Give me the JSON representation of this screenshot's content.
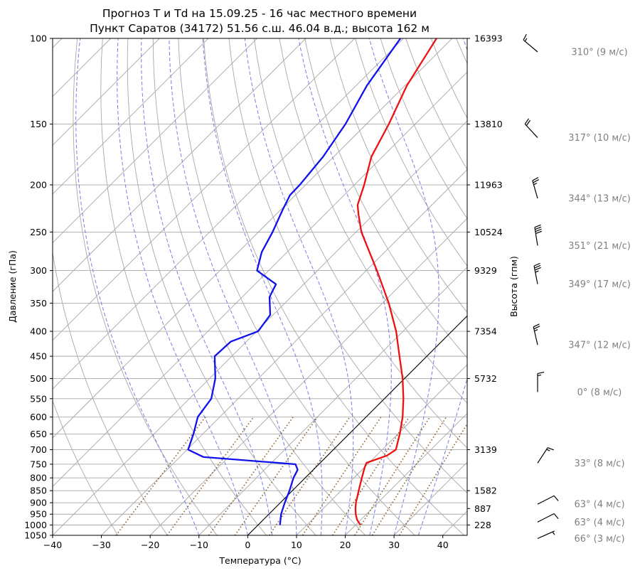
{
  "title_line1": "Прогноз T и Td на 15.09.25 - 16 час местного времени",
  "title_line2": "Пункт Саратов (34172) 51.56 с.ш. 46.04 в.д.; высота 162 м",
  "colors": {
    "temperature": "#ee1111",
    "dewpoint": "#1111ee",
    "grid": "#a8a8a8",
    "moist_adiabat": "#7a7ae8",
    "mixing_ratio": "#8b5a2b",
    "parcel": "#000000",
    "wind_text": "#808080"
  },
  "chart_data": {
    "type": "skew-t",
    "xlabel": "Температура (°C)",
    "ylabel": "Давление (гПа)",
    "y2label": "Высота (гпм)",
    "xlim": [
      -40,
      45
    ],
    "ylim": [
      1050,
      100
    ],
    "y_scale": "log",
    "x_ticks": [
      -40,
      -30,
      -20,
      -10,
      0,
      10,
      20,
      30,
      40
    ],
    "y_ticks": [
      100,
      150,
      200,
      250,
      300,
      350,
      400,
      450,
      500,
      550,
      600,
      650,
      700,
      750,
      800,
      850,
      900,
      950,
      1000,
      1050
    ],
    "height_labels": [
      {
        "p": 100,
        "h": "16393"
      },
      {
        "p": 150,
        "h": "13810"
      },
      {
        "p": 200,
        "h": "11963"
      },
      {
        "p": 250,
        "h": "10524"
      },
      {
        "p": 300,
        "h": "9329"
      },
      {
        "p": 400,
        "h": "7354"
      },
      {
        "p": 500,
        "h": "5732"
      },
      {
        "p": 700,
        "h": "3139"
      },
      {
        "p": 850,
        "h": "1582"
      },
      {
        "p": 925,
        "h": "887"
      },
      {
        "p": 1000,
        "h": "228"
      }
    ],
    "temperature": [
      {
        "p": 1000,
        "t": 21
      },
      {
        "p": 975,
        "t": 19.2
      },
      {
        "p": 950,
        "t": 17.8
      },
      {
        "p": 925,
        "t": 16.6
      },
      {
        "p": 900,
        "t": 15.5
      },
      {
        "p": 850,
        "t": 13.6
      },
      {
        "p": 800,
        "t": 11.6
      },
      {
        "p": 760,
        "t": 10
      },
      {
        "p": 745,
        "t": 9.5
      },
      {
        "p": 720,
        "t": 12.2
      },
      {
        "p": 700,
        "t": 12.8
      },
      {
        "p": 650,
        "t": 10.4
      },
      {
        "p": 600,
        "t": 7.5
      },
      {
        "p": 550,
        "t": 3.9
      },
      {
        "p": 500,
        "t": -0.4
      },
      {
        "p": 450,
        "t": -5.6
      },
      {
        "p": 400,
        "t": -11.4
      },
      {
        "p": 350,
        "t": -18.7
      },
      {
        "p": 300,
        "t": -27.8
      },
      {
        "p": 275,
        "t": -33.1
      },
      {
        "p": 250,
        "t": -38.9
      },
      {
        "p": 230,
        "t": -43.1
      },
      {
        "p": 220,
        "t": -45.2
      },
      {
        "p": 200,
        "t": -48
      },
      {
        "p": 175,
        "t": -52.3
      },
      {
        "p": 150,
        "t": -55.4
      },
      {
        "p": 125,
        "t": -59.6
      },
      {
        "p": 100,
        "t": -63.2
      }
    ],
    "dewpoint": [
      {
        "p": 1000,
        "t": 4.5
      },
      {
        "p": 950,
        "t": 2.5
      },
      {
        "p": 900,
        "t": 0.9
      },
      {
        "p": 850,
        "t": -0.6
      },
      {
        "p": 800,
        "t": -2.4
      },
      {
        "p": 770,
        "t": -3.2
      },
      {
        "p": 750,
        "t": -4.8
      },
      {
        "p": 725,
        "t": -25.1
      },
      {
        "p": 700,
        "t": -29.8
      },
      {
        "p": 650,
        "t": -31.9
      },
      {
        "p": 600,
        "t": -34.5
      },
      {
        "p": 550,
        "t": -35.5
      },
      {
        "p": 500,
        "t": -38.8
      },
      {
        "p": 450,
        "t": -43.5
      },
      {
        "p": 420,
        "t": -43.2
      },
      {
        "p": 400,
        "t": -39.7
      },
      {
        "p": 370,
        "t": -40.6
      },
      {
        "p": 340,
        "t": -44.4
      },
      {
        "p": 320,
        "t": -45.7
      },
      {
        "p": 300,
        "t": -52.4
      },
      {
        "p": 275,
        "t": -55.2
      },
      {
        "p": 250,
        "t": -57.1
      },
      {
        "p": 225,
        "t": -59.6
      },
      {
        "p": 210,
        "t": -61.1
      },
      {
        "p": 200,
        "t": -61.2
      },
      {
        "p": 175,
        "t": -62.2
      },
      {
        "p": 150,
        "t": -64.3
      },
      {
        "p": 125,
        "t": -67.8
      },
      {
        "p": 100,
        "t": -70.6
      }
    ],
    "winds": [
      {
        "p": 100,
        "text": "310° (9 м/с)"
      },
      {
        "p": 150,
        "text": "317° (10 м/с)"
      },
      {
        "p": 200,
        "text": "344° (13 м/с)"
      },
      {
        "p": 250,
        "text": "351° (21 м/с)"
      },
      {
        "p": 300,
        "text": "349° (17 м/с)"
      },
      {
        "p": 400,
        "text": "347° (12 м/с)"
      },
      {
        "p": 500,
        "text": "0° (8 м/с)"
      },
      {
        "p": 700,
        "text": "33° (8 м/с)"
      },
      {
        "p": 850,
        "text": "63° (4 м/с)"
      },
      {
        "p": 925,
        "text": "63° (4 м/с)"
      },
      {
        "p": 1000,
        "text": "66° (3 м/с)"
      }
    ]
  }
}
